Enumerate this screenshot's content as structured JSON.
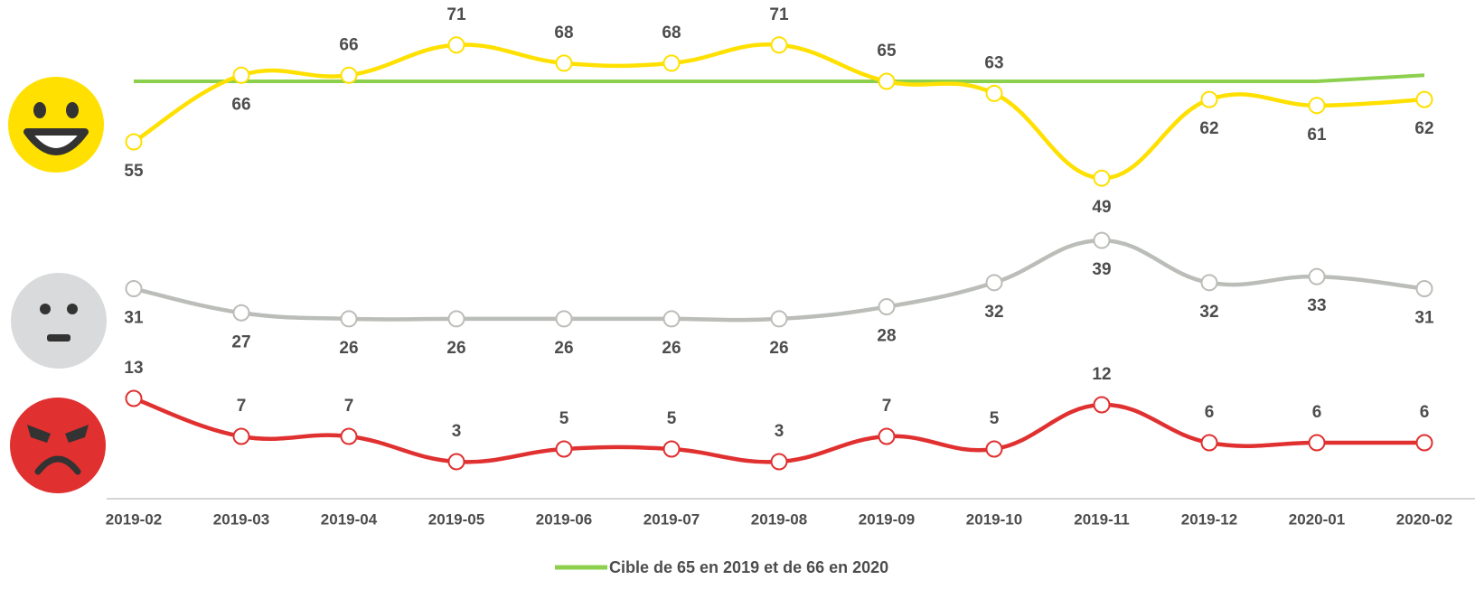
{
  "chart_data": [
    {
      "type": "line",
      "ylim": [
        45,
        75
      ],
      "series": [
        {
          "color": "#ffe000",
          "values": [
            55,
            66,
            66,
            71,
            68,
            68,
            71,
            65,
            63,
            49,
            62,
            61,
            62
          ]
        },
        {
          "name": "Cible de 65 en 2019 et de 66 en 2020",
          "color": "#8cd04e",
          "values": [
            65,
            65,
            65,
            65,
            65,
            65,
            65,
            65,
            65,
            65,
            65,
            65,
            66
          ]
        }
      ]
    },
    {
      "type": "line",
      "ylim": [
        20,
        45
      ],
      "series": [
        {
          "color": "#bbbdb8",
          "values": [
            31,
            27,
            26,
            26,
            26,
            26,
            26,
            28,
            32,
            39,
            32,
            33,
            31
          ]
        }
      ]
    },
    {
      "type": "line",
      "ylim": [
        0,
        15
      ],
      "categories": [
        "2019-02",
        "2019-03",
        "2019-04",
        "2019-05",
        "2019-06",
        "2019-07",
        "2019-08",
        "2019-09",
        "2019-10",
        "2019-11",
        "2019-12",
        "2020-01",
        "2020-02"
      ],
      "series": [
        {
          "color": "#e03030",
          "values": [
            13,
            7,
            7,
            3,
            5,
            5,
            3,
            7,
            5,
            12,
            6,
            6,
            6
          ]
        }
      ]
    }
  ]
}
